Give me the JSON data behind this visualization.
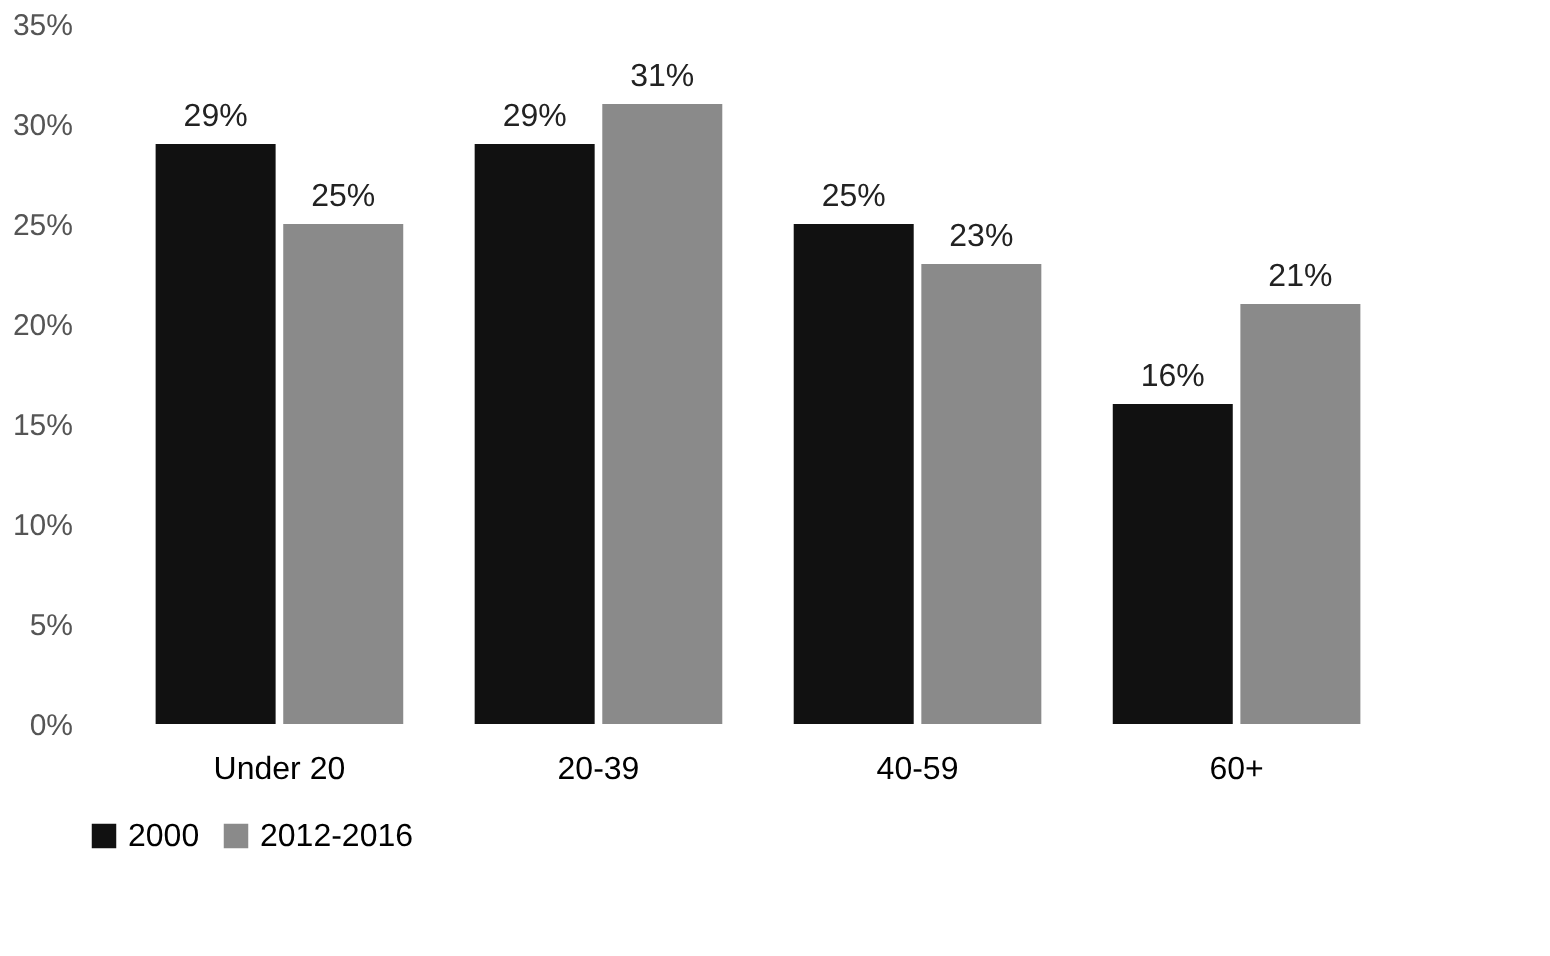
{
  "chart_data": {
    "type": "bar",
    "categories": [
      "Under 20",
      "20-39",
      "40-59",
      "60+"
    ],
    "series": [
      {
        "name": "2000",
        "color": "#111111",
        "values": [
          29,
          29,
          25,
          16
        ],
        "value_labels": [
          "29%",
          "29%",
          "25%",
          "16%"
        ]
      },
      {
        "name": "2012-2016",
        "color": "#8a8a8a",
        "values": [
          25,
          31,
          23,
          21
        ],
        "value_labels": [
          "25%",
          "31%",
          "23%",
          "21%"
        ]
      }
    ],
    "ylim": [
      0,
      35
    ],
    "yticks": [
      {
        "value": 0,
        "label": "0%"
      },
      {
        "value": 5,
        "label": "5%"
      },
      {
        "value": 10,
        "label": "10%"
      },
      {
        "value": 15,
        "label": "15%"
      },
      {
        "value": 20,
        "label": "20%"
      },
      {
        "value": 25,
        "label": "25%"
      },
      {
        "value": 30,
        "label": "30%"
      },
      {
        "value": 35,
        "label": "35%"
      }
    ],
    "grid": false,
    "legend": "bottom"
  }
}
